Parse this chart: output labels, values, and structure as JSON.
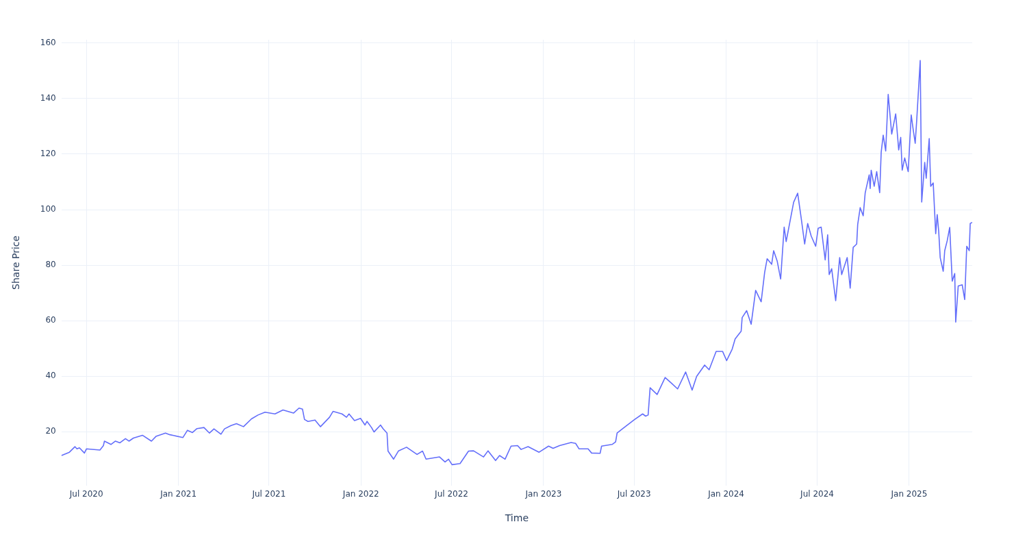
{
  "chart_data": {
    "type": "line",
    "xlabel": "Time",
    "ylabel": "Share Price",
    "color": "#636efa",
    "grid": true,
    "xlim": [
      "2020-05-12",
      "2025-05-07"
    ],
    "ylim": [
      0.6,
      161.2
    ],
    "xticks": [
      {
        "value": "2020-07-01",
        "label": "Jul 2020"
      },
      {
        "value": "2021-01-01",
        "label": "Jan 2021"
      },
      {
        "value": "2021-07-01",
        "label": "Jul 2021"
      },
      {
        "value": "2022-01-01",
        "label": "Jan 2022"
      },
      {
        "value": "2022-07-01",
        "label": "Jul 2022"
      },
      {
        "value": "2023-01-01",
        "label": "Jan 2023"
      },
      {
        "value": "2023-07-01",
        "label": "Jul 2023"
      },
      {
        "value": "2024-01-01",
        "label": "Jan 2024"
      },
      {
        "value": "2024-07-01",
        "label": "Jul 2024"
      },
      {
        "value": "2025-01-01",
        "label": "Jan 2025"
      }
    ],
    "yticks": [
      20,
      40,
      60,
      80,
      100,
      120,
      140,
      160
    ],
    "x": [
      "2020-05-12",
      "2020-05-28",
      "2020-06-08",
      "2020-06-12",
      "2020-06-17",
      "2020-06-27",
      "2020-07-01",
      "2020-07-28",
      "2020-08-04",
      "2020-08-06",
      "2020-08-19",
      "2020-08-28",
      "2020-09-06",
      "2020-09-17",
      "2020-09-24",
      "2020-10-03",
      "2020-10-21",
      "2020-11-08",
      "2020-11-17",
      "2020-12-06",
      "2020-12-15",
      "2021-01-10",
      "2021-01-19",
      "2021-01-29",
      "2021-02-07",
      "2021-02-21",
      "2021-03-04",
      "2021-03-13",
      "2021-03-27",
      "2021-04-03",
      "2021-04-16",
      "2021-04-27",
      "2021-05-11",
      "2021-05-27",
      "2021-06-09",
      "2021-06-23",
      "2021-07-13",
      "2021-07-29",
      "2021-08-19",
      "2021-08-30",
      "2021-09-06",
      "2021-09-10",
      "2021-09-17",
      "2021-10-01",
      "2021-10-12",
      "2021-10-30",
      "2021-11-06",
      "2021-11-24",
      "2021-12-03",
      "2021-12-08",
      "2021-12-19",
      "2021-12-31",
      "2022-01-09",
      "2022-01-13",
      "2022-01-22",
      "2022-01-27",
      "2022-02-09",
      "2022-02-14",
      "2022-02-22",
      "2022-02-24",
      "2022-03-07",
      "2022-03-17",
      "2022-04-02",
      "2022-04-23",
      "2022-05-04",
      "2022-05-11",
      "2022-06-07",
      "2022-06-18",
      "2022-06-25",
      "2022-07-02",
      "2022-07-18",
      "2022-08-04",
      "2022-08-14",
      "2022-09-03",
      "2022-09-12",
      "2022-09-27",
      "2022-10-05",
      "2022-10-16",
      "2022-10-28",
      "2022-11-10",
      "2022-11-17",
      "2022-12-01",
      "2022-12-23",
      "2023-01-11",
      "2023-01-20",
      "2023-02-02",
      "2023-02-25",
      "2023-03-06",
      "2023-03-13",
      "2023-03-31",
      "2023-04-07",
      "2023-04-24",
      "2023-04-27",
      "2023-05-18",
      "2023-05-25",
      "2023-05-28",
      "2023-06-11",
      "2023-07-02",
      "2023-07-18",
      "2023-07-24",
      "2023-07-29",
      "2023-08-02",
      "2023-08-16",
      "2023-09-01",
      "2023-09-14",
      "2023-09-26",
      "2023-10-12",
      "2023-10-25",
      "2023-11-03",
      "2023-11-19",
      "2023-11-28",
      "2023-12-12",
      "2023-12-25",
      "2024-01-02",
      "2024-01-13",
      "2024-01-19",
      "2024-01-31",
      "2024-02-02",
      "2024-02-11",
      "2024-02-20",
      "2024-02-29",
      "2024-03-11",
      "2024-03-18",
      "2024-03-23",
      "2024-04-01",
      "2024-04-05",
      "2024-04-12",
      "2024-04-19",
      "2024-04-26",
      "2024-04-30",
      "2024-05-09",
      "2024-05-15",
      "2024-05-23",
      "2024-05-30",
      "2024-06-06",
      "2024-06-12",
      "2024-06-19",
      "2024-06-28",
      "2024-07-03",
      "2024-07-09",
      "2024-07-17",
      "2024-07-22",
      "2024-07-25",
      "2024-07-30",
      "2024-08-07",
      "2024-08-15",
      "2024-08-19",
      "2024-08-30",
      "2024-09-05",
      "2024-09-11",
      "2024-09-18",
      "2024-09-20",
      "2024-09-25",
      "2024-10-01",
      "2024-10-05",
      "2024-10-13",
      "2024-10-15",
      "2024-10-17",
      "2024-10-23",
      "2024-10-28",
      "2024-11-03",
      "2024-11-06",
      "2024-11-10",
      "2024-11-15",
      "2024-11-20",
      "2024-11-27",
      "2024-12-05",
      "2024-12-11",
      "2024-12-15",
      "2024-12-18",
      "2024-12-23",
      "2024-12-30",
      "2025-01-05",
      "2025-01-09",
      "2025-01-13",
      "2025-01-16",
      "2025-01-23",
      "2025-01-26",
      "2025-02-01",
      "2025-02-04",
      "2025-02-10",
      "2025-02-13",
      "2025-02-18",
      "2025-02-23",
      "2025-02-26",
      "2025-03-01",
      "2025-03-04",
      "2025-03-10",
      "2025-03-13",
      "2025-03-18",
      "2025-03-23",
      "2025-03-28",
      "2025-04-02",
      "2025-04-04",
      "2025-04-09",
      "2025-04-17",
      "2025-04-22",
      "2025-04-26",
      "2025-05-01",
      "2025-05-03",
      "2025-05-07"
    ],
    "values": [
      11.4,
      12.6,
      14.6,
      13.8,
      14.2,
      12.3,
      13.8,
      13.4,
      15.0,
      16.6,
      15.4,
      16.6,
      16.0,
      17.5,
      16.6,
      17.7,
      18.7,
      16.6,
      18.3,
      19.5,
      18.9,
      17.9,
      20.5,
      19.7,
      21.1,
      21.5,
      19.5,
      21.0,
      19.1,
      21.0,
      22.2,
      22.9,
      21.8,
      24.6,
      26.0,
      27.0,
      26.4,
      27.8,
      26.7,
      28.5,
      28.1,
      24.4,
      23.7,
      24.2,
      21.8,
      25.2,
      27.3,
      26.4,
      25.2,
      26.4,
      24.0,
      24.8,
      22.4,
      23.7,
      21.5,
      19.9,
      22.4,
      21.1,
      19.5,
      13.0,
      10.1,
      13.1,
      14.4,
      11.8,
      13.0,
      10.1,
      10.9,
      9.1,
      10.1,
      8.1,
      8.5,
      13.0,
      13.1,
      10.9,
      13.1,
      9.6,
      11.4,
      10.1,
      14.8,
      15.0,
      13.6,
      14.6,
      12.6,
      14.8,
      14.0,
      15.0,
      16.1,
      15.8,
      13.8,
      13.8,
      12.3,
      12.2,
      14.8,
      15.4,
      16.3,
      19.5,
      21.5,
      24.4,
      26.4,
      25.6,
      26.0,
      35.8,
      33.4,
      39.5,
      37.4,
      35.4,
      41.5,
      35.0,
      39.9,
      44.0,
      42.3,
      48.9,
      48.9,
      45.6,
      49.7,
      53.4,
      56.2,
      61.1,
      63.6,
      58.7,
      70.9,
      66.8,
      77.4,
      82.3,
      80.3,
      85.2,
      81.5,
      75.0,
      93.7,
      88.5,
      97.0,
      102.7,
      105.9,
      97.0,
      87.6,
      95.0,
      90.5,
      86.8,
      93.3,
      93.7,
      81.9,
      90.9,
      76.6,
      78.7,
      67.2,
      82.7,
      76.6,
      82.7,
      71.7,
      86.4,
      87.6,
      94.6,
      100.7,
      97.8,
      106.0,
      112.5,
      107.6,
      114.2,
      108.4,
      113.7,
      106.1,
      120.7,
      126.8,
      121.1,
      141.5,
      127.2,
      134.5,
      121.5,
      126.0,
      114.2,
      118.6,
      113.7,
      134.1,
      128.8,
      123.9,
      132.1,
      153.7,
      102.7,
      117.0,
      111.3,
      125.6,
      108.4,
      109.6,
      91.3,
      98.2,
      92.1,
      82.7,
      77.8,
      85.2,
      88.8,
      93.6,
      74.2,
      77.0,
      59.5,
      72.5,
      72.9,
      67.6,
      86.8,
      85.2,
      95.0,
      95.4
    ]
  }
}
